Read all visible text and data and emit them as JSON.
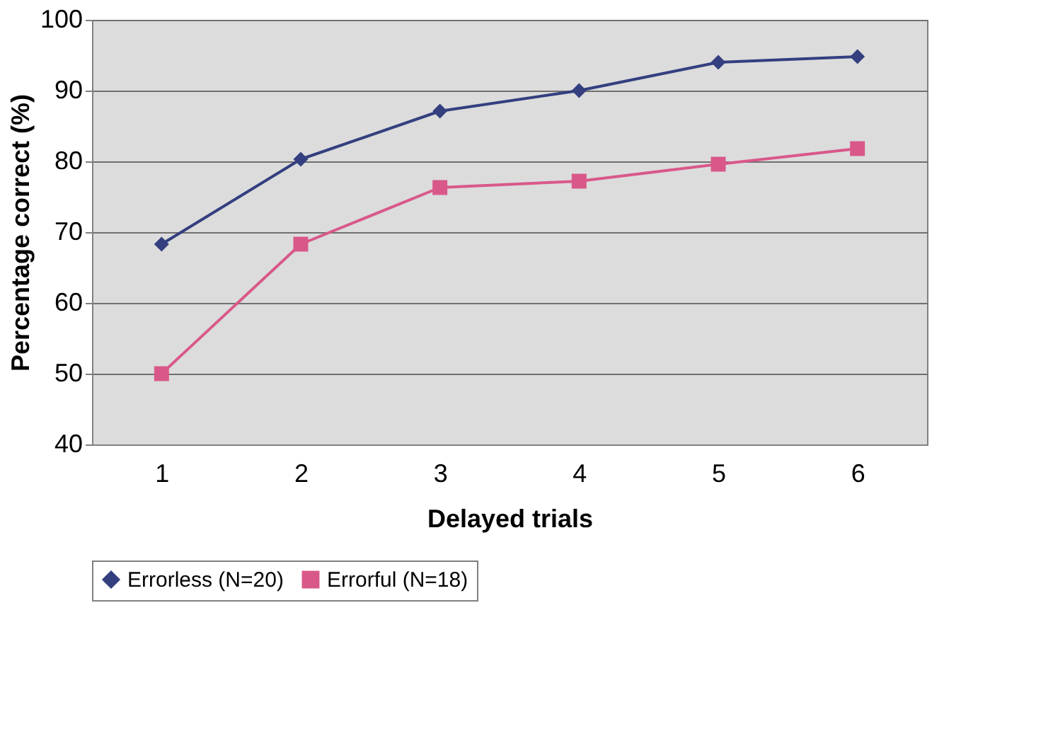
{
  "chart_data": {
    "type": "line",
    "xlabel": "Delayed trials",
    "ylabel": "Percentage correct (%)",
    "categories": [
      "1",
      "2",
      "3",
      "4",
      "5",
      "6"
    ],
    "series": [
      {
        "name": "Errorless (N=20)",
        "color": "#333f7f",
        "marker": "diamond",
        "values": [
          68.3,
          80.3,
          87.1,
          90.0,
          94.0,
          94.8
        ]
      },
      {
        "name": "Errorful (N=18)",
        "color": "#d9588a",
        "marker": "square",
        "values": [
          50.0,
          68.3,
          76.3,
          77.2,
          79.6,
          81.8
        ]
      }
    ],
    "ylim": [
      40,
      100
    ],
    "yticks": [
      40,
      50,
      60,
      70,
      80,
      90,
      100
    ],
    "grid": "y",
    "legend": "bottom",
    "line_style": "solid"
  }
}
